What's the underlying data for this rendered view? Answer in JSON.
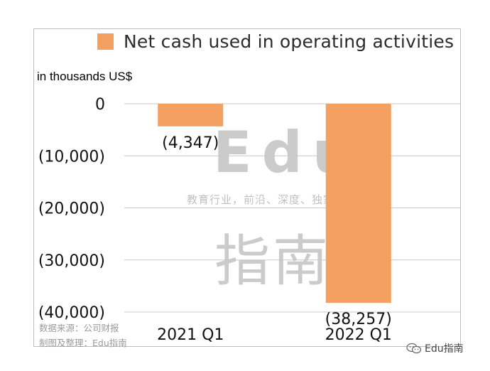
{
  "chart_data": {
    "type": "bar",
    "categories": [
      "2021 Q1",
      "2022 Q1"
    ],
    "series": [
      {
        "name": "Net cash used in operating activities",
        "values": [
          -4347,
          -38257
        ]
      }
    ],
    "data_labels": [
      "(4,347)",
      "(38,257)"
    ],
    "ylabel": "in thousands US$",
    "ylim": [
      -40000,
      0
    ],
    "yticks": [
      0,
      -10000,
      -20000,
      -30000,
      -40000
    ],
    "ytick_labels": [
      "0",
      "(10,000)",
      "(20,000)",
      "(30,000)",
      "(40,000)"
    ],
    "grid": true,
    "legend_position": "top",
    "bar_color": "#f4a060"
  },
  "watermark": {
    "logo_text": "Edu",
    "subtitle": "教育行业，前沿、深度、独家",
    "name": "指南"
  },
  "source": {
    "line1": "数据来源：公司财报",
    "line2": "制图及整理：Edu指南"
  },
  "brand": {
    "label": "Edu指南"
  }
}
